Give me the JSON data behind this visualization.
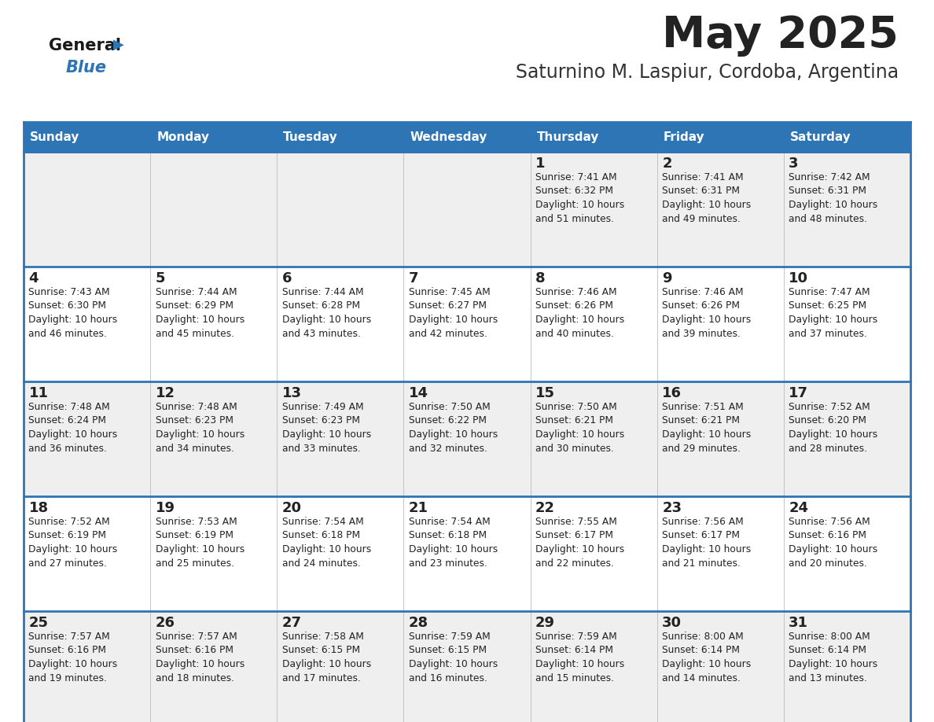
{
  "title": "May 2025",
  "subtitle": "Saturnino M. Laspiur, Cordoba, Argentina",
  "days_of_week": [
    "Sunday",
    "Monday",
    "Tuesday",
    "Wednesday",
    "Thursday",
    "Friday",
    "Saturday"
  ],
  "header_bg": "#2E75B6",
  "header_text": "#FFFFFF",
  "row_bg_odd": "#EFEFEF",
  "row_bg_even": "#FFFFFF",
  "cell_text": "#222222",
  "border_color": "#2E75B6",
  "title_color": "#222222",
  "subtitle_color": "#333333",
  "logo_general_color": "#1a1a1a",
  "logo_blue_color": "#2E75B6",
  "calendar": [
    [
      {
        "day": null,
        "info": ""
      },
      {
        "day": null,
        "info": ""
      },
      {
        "day": null,
        "info": ""
      },
      {
        "day": null,
        "info": ""
      },
      {
        "day": 1,
        "info": "Sunrise: 7:41 AM\nSunset: 6:32 PM\nDaylight: 10 hours\nand 51 minutes."
      },
      {
        "day": 2,
        "info": "Sunrise: 7:41 AM\nSunset: 6:31 PM\nDaylight: 10 hours\nand 49 minutes."
      },
      {
        "day": 3,
        "info": "Sunrise: 7:42 AM\nSunset: 6:31 PM\nDaylight: 10 hours\nand 48 minutes."
      }
    ],
    [
      {
        "day": 4,
        "info": "Sunrise: 7:43 AM\nSunset: 6:30 PM\nDaylight: 10 hours\nand 46 minutes."
      },
      {
        "day": 5,
        "info": "Sunrise: 7:44 AM\nSunset: 6:29 PM\nDaylight: 10 hours\nand 45 minutes."
      },
      {
        "day": 6,
        "info": "Sunrise: 7:44 AM\nSunset: 6:28 PM\nDaylight: 10 hours\nand 43 minutes."
      },
      {
        "day": 7,
        "info": "Sunrise: 7:45 AM\nSunset: 6:27 PM\nDaylight: 10 hours\nand 42 minutes."
      },
      {
        "day": 8,
        "info": "Sunrise: 7:46 AM\nSunset: 6:26 PM\nDaylight: 10 hours\nand 40 minutes."
      },
      {
        "day": 9,
        "info": "Sunrise: 7:46 AM\nSunset: 6:26 PM\nDaylight: 10 hours\nand 39 minutes."
      },
      {
        "day": 10,
        "info": "Sunrise: 7:47 AM\nSunset: 6:25 PM\nDaylight: 10 hours\nand 37 minutes."
      }
    ],
    [
      {
        "day": 11,
        "info": "Sunrise: 7:48 AM\nSunset: 6:24 PM\nDaylight: 10 hours\nand 36 minutes."
      },
      {
        "day": 12,
        "info": "Sunrise: 7:48 AM\nSunset: 6:23 PM\nDaylight: 10 hours\nand 34 minutes."
      },
      {
        "day": 13,
        "info": "Sunrise: 7:49 AM\nSunset: 6:23 PM\nDaylight: 10 hours\nand 33 minutes."
      },
      {
        "day": 14,
        "info": "Sunrise: 7:50 AM\nSunset: 6:22 PM\nDaylight: 10 hours\nand 32 minutes."
      },
      {
        "day": 15,
        "info": "Sunrise: 7:50 AM\nSunset: 6:21 PM\nDaylight: 10 hours\nand 30 minutes."
      },
      {
        "day": 16,
        "info": "Sunrise: 7:51 AM\nSunset: 6:21 PM\nDaylight: 10 hours\nand 29 minutes."
      },
      {
        "day": 17,
        "info": "Sunrise: 7:52 AM\nSunset: 6:20 PM\nDaylight: 10 hours\nand 28 minutes."
      }
    ],
    [
      {
        "day": 18,
        "info": "Sunrise: 7:52 AM\nSunset: 6:19 PM\nDaylight: 10 hours\nand 27 minutes."
      },
      {
        "day": 19,
        "info": "Sunrise: 7:53 AM\nSunset: 6:19 PM\nDaylight: 10 hours\nand 25 minutes."
      },
      {
        "day": 20,
        "info": "Sunrise: 7:54 AM\nSunset: 6:18 PM\nDaylight: 10 hours\nand 24 minutes."
      },
      {
        "day": 21,
        "info": "Sunrise: 7:54 AM\nSunset: 6:18 PM\nDaylight: 10 hours\nand 23 minutes."
      },
      {
        "day": 22,
        "info": "Sunrise: 7:55 AM\nSunset: 6:17 PM\nDaylight: 10 hours\nand 22 minutes."
      },
      {
        "day": 23,
        "info": "Sunrise: 7:56 AM\nSunset: 6:17 PM\nDaylight: 10 hours\nand 21 minutes."
      },
      {
        "day": 24,
        "info": "Sunrise: 7:56 AM\nSunset: 6:16 PM\nDaylight: 10 hours\nand 20 minutes."
      }
    ],
    [
      {
        "day": 25,
        "info": "Sunrise: 7:57 AM\nSunset: 6:16 PM\nDaylight: 10 hours\nand 19 minutes."
      },
      {
        "day": 26,
        "info": "Sunrise: 7:57 AM\nSunset: 6:16 PM\nDaylight: 10 hours\nand 18 minutes."
      },
      {
        "day": 27,
        "info": "Sunrise: 7:58 AM\nSunset: 6:15 PM\nDaylight: 10 hours\nand 17 minutes."
      },
      {
        "day": 28,
        "info": "Sunrise: 7:59 AM\nSunset: 6:15 PM\nDaylight: 10 hours\nand 16 minutes."
      },
      {
        "day": 29,
        "info": "Sunrise: 7:59 AM\nSunset: 6:14 PM\nDaylight: 10 hours\nand 15 minutes."
      },
      {
        "day": 30,
        "info": "Sunrise: 8:00 AM\nSunset: 6:14 PM\nDaylight: 10 hours\nand 14 minutes."
      },
      {
        "day": 31,
        "info": "Sunrise: 8:00 AM\nSunset: 6:14 PM\nDaylight: 10 hours\nand 13 minutes."
      }
    ]
  ]
}
